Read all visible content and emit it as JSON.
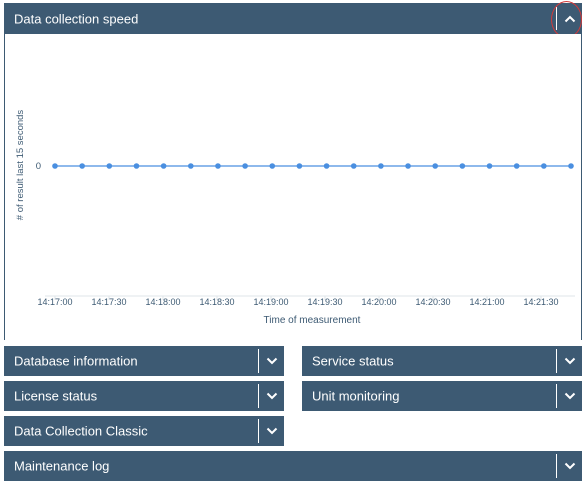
{
  "main_panel": {
    "title": "Data collection speed",
    "toggle_icon": "chevron-up-icon"
  },
  "chart_data": {
    "type": "line",
    "ylabel": "# of result last 15 seconds",
    "xlabel": "Time of measurement",
    "y_ticks": [
      "0"
    ],
    "x_ticks": [
      "14:17:00",
      "14:17:30",
      "14:18:00",
      "14:18:30",
      "14:19:00",
      "14:19:30",
      "14:20:00",
      "14:20:30",
      "14:21:00",
      "14:21:30"
    ],
    "series": [
      {
        "color": "#4a8fe0",
        "values": [
          0,
          0,
          0,
          0,
          0,
          0,
          0,
          0,
          0,
          0,
          0,
          0,
          0,
          0,
          0,
          0,
          0,
          0,
          0,
          0
        ]
      }
    ],
    "grid": false
  },
  "panels": {
    "database_information": "Database information",
    "service_status": "Service status",
    "license_status": "License status",
    "unit_monitoring": "Unit monitoring",
    "data_collection_classic": "Data Collection Classic",
    "maintenance_log": "Maintenance log"
  },
  "colors": {
    "header": "#3d5a73",
    "series": "#4a8fe0",
    "highlight": "#d23a3a"
  }
}
